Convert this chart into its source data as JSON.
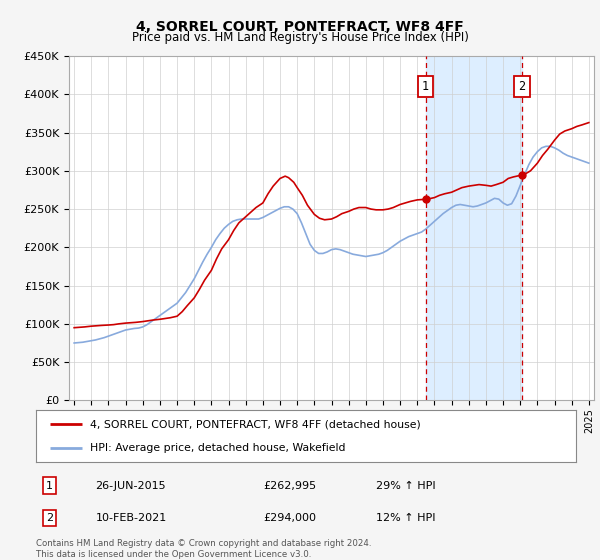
{
  "title": "4, SORREL COURT, PONTEFRACT, WF8 4FF",
  "subtitle": "Price paid vs. HM Land Registry's House Price Index (HPI)",
  "ylim": [
    0,
    450000
  ],
  "yticks": [
    0,
    50000,
    100000,
    150000,
    200000,
    250000,
    300000,
    350000,
    400000,
    450000
  ],
  "ytick_labels": [
    "£0",
    "£50K",
    "£100K",
    "£150K",
    "£200K",
    "£250K",
    "£300K",
    "£350K",
    "£400K",
    "£450K"
  ],
  "xlim_start": 1994.7,
  "xlim_end": 2025.3,
  "bg_color": "#f5f5f5",
  "plot_bg_color": "#ffffff",
  "grid_color": "#d0d0d0",
  "red_line_color": "#cc0000",
  "blue_line_color": "#88aadd",
  "shade_color": "#ddeeff",
  "marker1_x": 2015.49,
  "marker1_y": 262995,
  "marker2_x": 2021.11,
  "marker2_y": 294000,
  "marker1_label": "1",
  "marker2_label": "2",
  "legend_line1": "4, SORREL COURT, PONTEFRACT, WF8 4FF (detached house)",
  "legend_line2": "HPI: Average price, detached house, Wakefield",
  "table_row1": [
    "1",
    "26-JUN-2015",
    "£262,995",
    "29% ↑ HPI"
  ],
  "table_row2": [
    "2",
    "10-FEB-2021",
    "£294,000",
    "12% ↑ HPI"
  ],
  "footnote": "Contains HM Land Registry data © Crown copyright and database right 2024.\nThis data is licensed under the Open Government Licence v3.0.",
  "hpi_years": [
    1995,
    1995.25,
    1995.5,
    1995.75,
    1996,
    1996.25,
    1996.5,
    1996.75,
    1997,
    1997.25,
    1997.5,
    1997.75,
    1998,
    1998.25,
    1998.5,
    1998.75,
    1999,
    1999.25,
    1999.5,
    1999.75,
    2000,
    2000.25,
    2000.5,
    2000.75,
    2001,
    2001.25,
    2001.5,
    2001.75,
    2002,
    2002.25,
    2002.5,
    2002.75,
    2003,
    2003.25,
    2003.5,
    2003.75,
    2004,
    2004.25,
    2004.5,
    2004.75,
    2005,
    2005.25,
    2005.5,
    2005.75,
    2006,
    2006.25,
    2006.5,
    2006.75,
    2007,
    2007.25,
    2007.5,
    2007.75,
    2008,
    2008.25,
    2008.5,
    2008.75,
    2009,
    2009.25,
    2009.5,
    2009.75,
    2010,
    2010.25,
    2010.5,
    2010.75,
    2011,
    2011.25,
    2011.5,
    2011.75,
    2012,
    2012.25,
    2012.5,
    2012.75,
    2013,
    2013.25,
    2013.5,
    2013.75,
    2014,
    2014.25,
    2014.5,
    2014.75,
    2015,
    2015.25,
    2015.5,
    2015.75,
    2016,
    2016.25,
    2016.5,
    2016.75,
    2017,
    2017.25,
    2017.5,
    2017.75,
    2018,
    2018.25,
    2018.5,
    2018.75,
    2019,
    2019.25,
    2019.5,
    2019.75,
    2020,
    2020.25,
    2020.5,
    2020.75,
    2021,
    2021.25,
    2021.5,
    2021.75,
    2022,
    2022.25,
    2022.5,
    2022.75,
    2023,
    2023.25,
    2023.5,
    2023.75,
    2024,
    2024.25,
    2024.5,
    2024.75,
    2025
  ],
  "hpi_values": [
    75000,
    75500,
    76000,
    77000,
    78000,
    79000,
    80500,
    82000,
    84000,
    86000,
    88000,
    90000,
    92000,
    93000,
    94000,
    94500,
    96000,
    99000,
    103000,
    107000,
    111000,
    115000,
    119000,
    123000,
    127000,
    134000,
    141000,
    150000,
    159000,
    170000,
    181000,
    191000,
    200000,
    210000,
    218000,
    225000,
    230000,
    234000,
    236000,
    237000,
    237000,
    237000,
    237000,
    237000,
    239000,
    242000,
    245000,
    248000,
    251000,
    253000,
    253000,
    250000,
    244000,
    232000,
    218000,
    204000,
    196000,
    192000,
    192000,
    194000,
    197000,
    198000,
    197000,
    195000,
    193000,
    191000,
    190000,
    189000,
    188000,
    189000,
    190000,
    191000,
    193000,
    196000,
    200000,
    204000,
    208000,
    211000,
    214000,
    216000,
    218000,
    220000,
    224000,
    229000,
    234000,
    239000,
    244000,
    248000,
    252000,
    255000,
    256000,
    255000,
    254000,
    253000,
    254000,
    256000,
    258000,
    261000,
    264000,
    263000,
    258000,
    255000,
    257000,
    267000,
    281000,
    295000,
    308000,
    318000,
    325000,
    330000,
    332000,
    332000,
    330000,
    327000,
    323000,
    320000,
    318000,
    316000,
    314000,
    312000,
    310000
  ],
  "red_years": [
    1995,
    1995.3,
    1995.6,
    1996,
    1996.3,
    1996.6,
    1997,
    1997.3,
    1997.6,
    1998,
    1998.3,
    1998.6,
    1999,
    1999.3,
    1999.6,
    2000,
    2000.3,
    2000.6,
    2001,
    2001.3,
    2001.6,
    2002,
    2002.3,
    2002.6,
    2003,
    2003.3,
    2003.6,
    2004,
    2004.3,
    2004.6,
    2005,
    2005.3,
    2005.6,
    2006,
    2006.3,
    2006.6,
    2007,
    2007.3,
    2007.5,
    2007.8,
    2008,
    2008.3,
    2008.6,
    2009,
    2009.3,
    2009.6,
    2010,
    2010.3,
    2010.6,
    2011,
    2011.3,
    2011.6,
    2012,
    2012.3,
    2012.6,
    2013,
    2013.3,
    2013.6,
    2014,
    2014.3,
    2014.6,
    2015,
    2015.3,
    2015.49,
    2015.6,
    2016,
    2016.3,
    2016.6,
    2017,
    2017.3,
    2017.6,
    2018,
    2018.3,
    2018.6,
    2019,
    2019.3,
    2019.6,
    2020,
    2020.3,
    2020.6,
    2021,
    2021.11,
    2021.3,
    2021.6,
    2022,
    2022.3,
    2022.6,
    2023,
    2023.3,
    2023.6,
    2024,
    2024.3,
    2024.6,
    2025
  ],
  "red_values": [
    95000,
    95500,
    96000,
    97000,
    97500,
    98000,
    98500,
    99000,
    100000,
    101000,
    101500,
    102000,
    103000,
    104000,
    105000,
    106000,
    107000,
    108000,
    110000,
    116000,
    124000,
    134000,
    145000,
    157000,
    170000,
    185000,
    198000,
    210000,
    222000,
    232000,
    240000,
    246000,
    252000,
    258000,
    270000,
    280000,
    290000,
    293000,
    291000,
    285000,
    278000,
    268000,
    255000,
    243000,
    238000,
    236000,
    237000,
    240000,
    244000,
    247000,
    250000,
    252000,
    252000,
    250000,
    249000,
    249000,
    250000,
    252000,
    256000,
    258000,
    260000,
    262000,
    262500,
    262995,
    263000,
    265000,
    268000,
    270000,
    272000,
    275000,
    278000,
    280000,
    281000,
    282000,
    281000,
    280000,
    282000,
    285000,
    290000,
    292000,
    294000,
    294000,
    296000,
    300000,
    310000,
    320000,
    328000,
    340000,
    348000,
    352000,
    355000,
    358000,
    360000,
    363000
  ]
}
